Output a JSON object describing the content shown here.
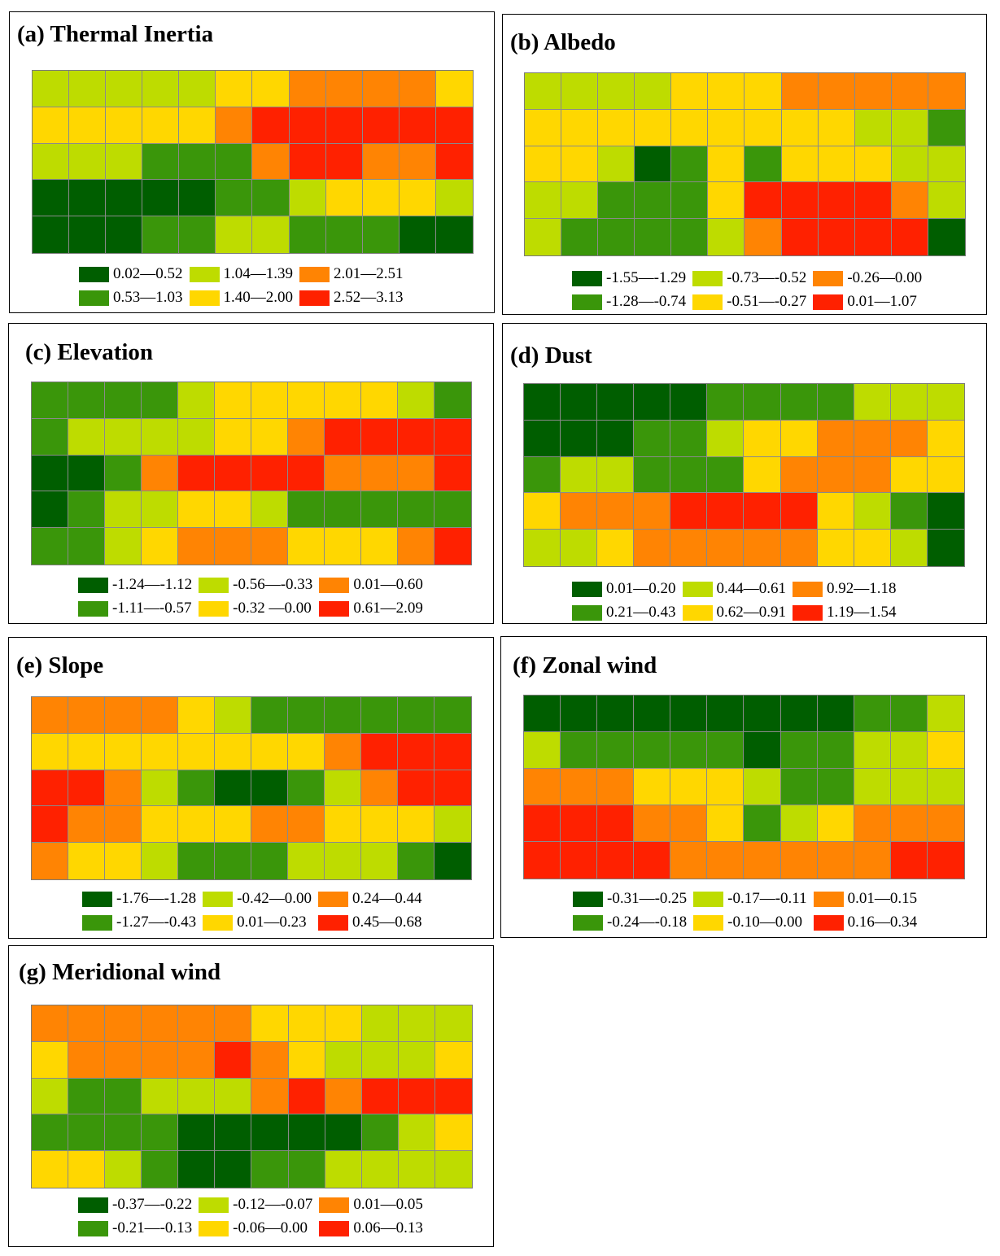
{
  "colors": {
    "c1": "#005e00",
    "c2": "#3a960a",
    "c3": "#bedc00",
    "c4": "#ffd700",
    "c5": "#ff8403",
    "c6": "#ff2100"
  },
  "chart_data": [
    {
      "type": "heatmap",
      "title": "(a) Thermal Inertia",
      "legend": [
        "0.02—0.52",
        "1.04—1.39",
        "2.01—2.51",
        "0.53—1.03",
        "1.40—2.00",
        "2.52—3.13"
      ],
      "class_order": [
        1,
        3,
        5,
        2,
        4,
        6
      ],
      "grid": [
        [
          3,
          3,
          3,
          3,
          3,
          4,
          4,
          5,
          5,
          5,
          5,
          4
        ],
        [
          4,
          4,
          4,
          4,
          4,
          5,
          6,
          6,
          6,
          6,
          6,
          6
        ],
        [
          3,
          3,
          3,
          2,
          2,
          2,
          5,
          6,
          6,
          5,
          5,
          6
        ],
        [
          1,
          1,
          1,
          1,
          1,
          2,
          2,
          3,
          4,
          4,
          4,
          3
        ],
        [
          1,
          1,
          1,
          2,
          2,
          3,
          3,
          2,
          2,
          2,
          1,
          1
        ]
      ]
    },
    {
      "type": "heatmap",
      "title": "(b) Albedo",
      "legend": [
        "-1.55—-1.29",
        "-0.73—-0.52",
        "-0.26—0.00",
        "-1.28—-0.74",
        "-0.51—-0.27",
        "0.01—1.07"
      ],
      "class_order": [
        1,
        3,
        5,
        2,
        4,
        6
      ],
      "grid": [
        [
          3,
          3,
          3,
          3,
          4,
          4,
          4,
          5,
          5,
          5,
          5,
          5
        ],
        [
          4,
          4,
          4,
          4,
          4,
          4,
          4,
          4,
          4,
          3,
          3,
          2
        ],
        [
          4,
          4,
          3,
          1,
          2,
          4,
          2,
          4,
          4,
          4,
          3,
          3
        ],
        [
          3,
          3,
          2,
          2,
          2,
          4,
          6,
          6,
          6,
          6,
          5,
          3
        ],
        [
          3,
          2,
          2,
          2,
          2,
          3,
          5,
          6,
          6,
          6,
          6,
          1
        ]
      ]
    },
    {
      "type": "heatmap",
      "title": "(c) Elevation",
      "legend": [
        "-1.24—-1.12",
        "-0.56—-0.33",
        "0.01—0.60",
        "-1.11—-0.57",
        "-0.32 —0.00",
        "0.61—2.09"
      ],
      "class_order": [
        1,
        3,
        5,
        2,
        4,
        6
      ],
      "grid": [
        [
          2,
          2,
          2,
          2,
          3,
          4,
          4,
          4,
          4,
          4,
          3,
          2
        ],
        [
          2,
          3,
          3,
          3,
          3,
          4,
          4,
          5,
          6,
          6,
          6,
          6
        ],
        [
          1,
          1,
          2,
          5,
          6,
          6,
          6,
          6,
          5,
          5,
          5,
          6
        ],
        [
          1,
          2,
          3,
          3,
          4,
          4,
          3,
          2,
          2,
          2,
          2,
          2
        ],
        [
          2,
          2,
          3,
          4,
          5,
          5,
          5,
          4,
          4,
          4,
          5,
          6
        ]
      ]
    },
    {
      "type": "heatmap",
      "title": "(d) Dust",
      "legend": [
        "0.01—0.20",
        "0.44—0.61",
        "0.92—1.18",
        "0.21—0.43",
        "0.62—0.91",
        "1.19—1.54"
      ],
      "class_order": [
        1,
        3,
        5,
        2,
        4,
        6
      ],
      "grid": [
        [
          1,
          1,
          1,
          1,
          1,
          2,
          2,
          2,
          2,
          3,
          3,
          3
        ],
        [
          1,
          1,
          1,
          2,
          2,
          3,
          4,
          4,
          5,
          5,
          5,
          4
        ],
        [
          2,
          3,
          3,
          2,
          2,
          2,
          4,
          5,
          5,
          5,
          4,
          4
        ],
        [
          4,
          5,
          5,
          5,
          6,
          6,
          6,
          6,
          4,
          3,
          2,
          1
        ],
        [
          3,
          3,
          4,
          5,
          5,
          5,
          5,
          5,
          4,
          4,
          3,
          1
        ]
      ]
    },
    {
      "type": "heatmap",
      "title": "(e) Slope",
      "legend": [
        "-1.76—-1.28",
        "-0.42—0.00",
        "0.24—0.44",
        "-1.27—-0.43",
        "0.01—0.23",
        "0.45—0.68"
      ],
      "class_order": [
        1,
        3,
        5,
        2,
        4,
        6
      ],
      "grid": [
        [
          5,
          5,
          5,
          5,
          4,
          3,
          2,
          2,
          2,
          2,
          2,
          2
        ],
        [
          4,
          4,
          4,
          4,
          4,
          4,
          4,
          4,
          5,
          6,
          6,
          6
        ],
        [
          6,
          6,
          5,
          3,
          2,
          1,
          1,
          2,
          3,
          5,
          6,
          6
        ],
        [
          6,
          5,
          5,
          4,
          4,
          4,
          5,
          5,
          4,
          4,
          4,
          3
        ],
        [
          5,
          4,
          4,
          3,
          2,
          2,
          2,
          3,
          3,
          3,
          2,
          1
        ]
      ]
    },
    {
      "type": "heatmap",
      "title": "(f) Zonal wind",
      "legend": [
        "-0.31—-0.25",
        "-0.17—-0.11",
        "0.01—0.15",
        "-0.24—-0.18",
        "-0.10—0.00",
        "0.16—0.34"
      ],
      "class_order": [
        1,
        3,
        5,
        2,
        4,
        6
      ],
      "grid": [
        [
          1,
          1,
          1,
          1,
          1,
          1,
          1,
          1,
          1,
          2,
          2,
          3
        ],
        [
          3,
          2,
          2,
          2,
          2,
          2,
          1,
          2,
          2,
          3,
          3,
          4
        ],
        [
          5,
          5,
          5,
          4,
          4,
          4,
          3,
          2,
          2,
          3,
          3,
          3
        ],
        [
          6,
          6,
          6,
          5,
          5,
          4,
          2,
          3,
          4,
          5,
          5,
          5
        ],
        [
          6,
          6,
          6,
          6,
          5,
          5,
          5,
          5,
          5,
          5,
          6,
          6
        ]
      ]
    },
    {
      "type": "heatmap",
      "title": "(g) Meridional wind",
      "legend": [
        "-0.37—-0.22",
        "-0.12—-0.07",
        "0.01—0.05",
        "-0.21—-0.13",
        "-0.06—0.00",
        "0.06—0.13"
      ],
      "class_order": [
        1,
        3,
        5,
        2,
        4,
        6
      ],
      "grid": [
        [
          5,
          5,
          5,
          5,
          5,
          5,
          4,
          4,
          4,
          3,
          3,
          3
        ],
        [
          4,
          5,
          5,
          5,
          5,
          6,
          5,
          4,
          3,
          3,
          3,
          4
        ],
        [
          3,
          2,
          2,
          3,
          3,
          3,
          5,
          6,
          5,
          6,
          6,
          6
        ],
        [
          2,
          2,
          2,
          2,
          1,
          1,
          1,
          1,
          1,
          2,
          3,
          4
        ],
        [
          4,
          4,
          3,
          2,
          1,
          1,
          2,
          2,
          3,
          3,
          3,
          3
        ]
      ]
    }
  ]
}
